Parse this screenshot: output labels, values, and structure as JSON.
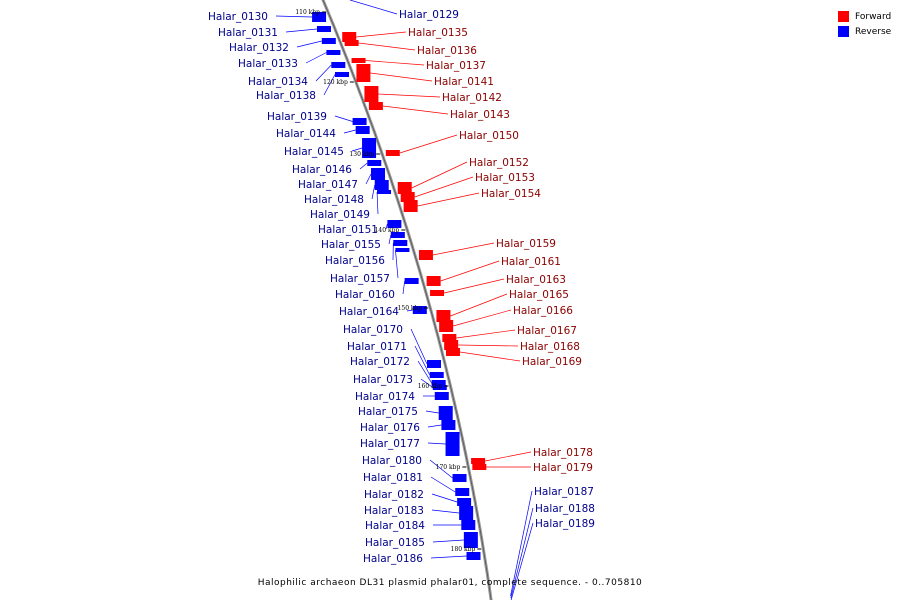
{
  "caption": "Halophilic archaeon DL31 plasmid phalar01, complete sequence. - 0..705810",
  "legend": [
    {
      "label": "Forward",
      "color": "#ff0000"
    },
    {
      "label": "Reverse",
      "color": "#0000ff"
    }
  ],
  "ticks": [
    "110 kbp",
    "120 kbp",
    "130 kbp",
    "140 kbp",
    "150 kbp",
    "160 kbp",
    "170 kbp",
    "180 kbp"
  ],
  "reverse_genes": [
    "Halar_0130",
    "Halar_0131",
    "Halar_0132",
    "Halar_0133",
    "Halar_0134",
    "Halar_0138",
    "Halar_0139",
    "Halar_0144",
    "Halar_0145",
    "Halar_0146",
    "Halar_0147",
    "Halar_0148",
    "Halar_0149",
    "Halar_0151",
    "Halar_0155",
    "Halar_0156",
    "Halar_0157",
    "Halar_0160",
    "Halar_0164",
    "Halar_0170",
    "Halar_0171",
    "Halar_0172",
    "Halar_0173",
    "Halar_0174",
    "Halar_0175",
    "Halar_0176",
    "Halar_0177",
    "Halar_0180",
    "Halar_0181",
    "Halar_0182",
    "Halar_0183",
    "Halar_0184",
    "Halar_0185",
    "Halar_0186"
  ],
  "forward_genes": [
    "Halar_0135",
    "Halar_0136",
    "Halar_0137",
    "Halar_0141",
    "Halar_0142",
    "Halar_0143",
    "Halar_0150",
    "Halar_0152",
    "Halar_0153",
    "Halar_0154",
    "Halar_0159",
    "Halar_0161",
    "Halar_0163",
    "Halar_0165",
    "Halar_0166",
    "Halar_0167",
    "Halar_0168",
    "Halar_0169",
    "Halar_0178",
    "Halar_0179"
  ],
  "right_blue_genes": [
    "Halar_0129",
    "Halar_0187",
    "Halar_0188",
    "Halar_0189"
  ]
}
